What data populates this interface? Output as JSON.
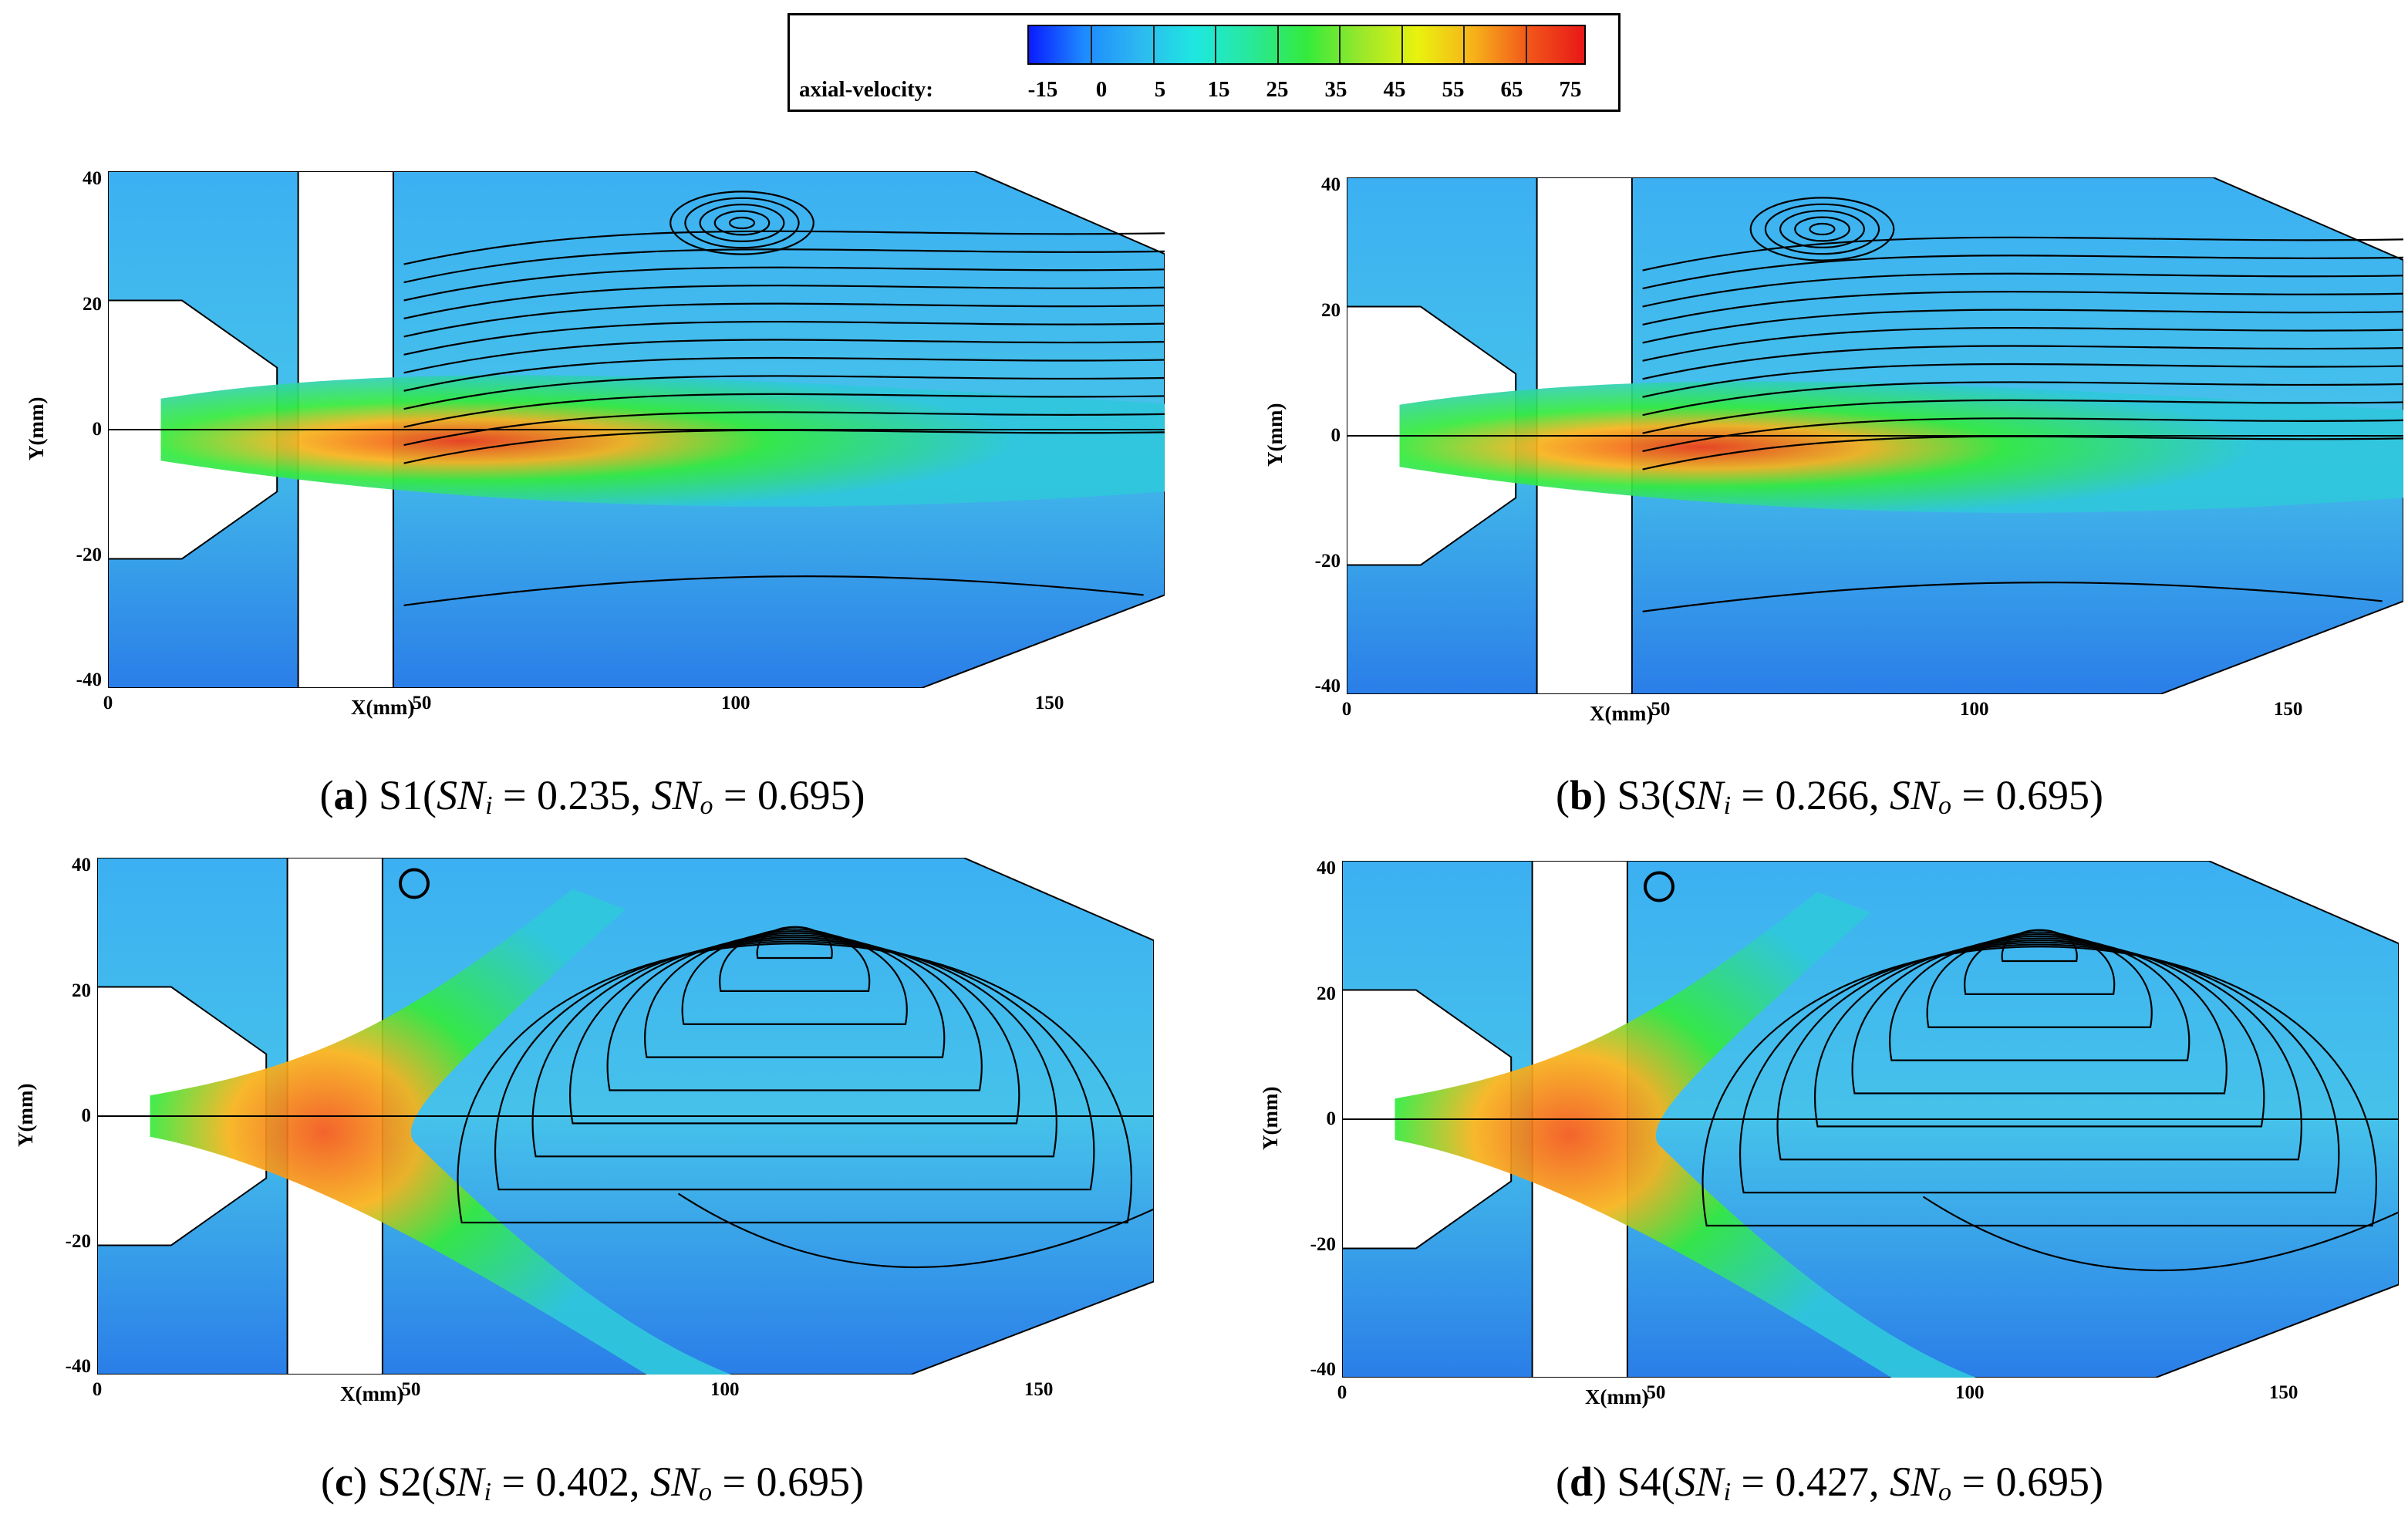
{
  "colorbar": {
    "title": "axial-velocity:",
    "ticks": [
      "-15",
      "0",
      "5",
      "15",
      "25",
      "35",
      "45",
      "55",
      "65",
      "75"
    ]
  },
  "axes": {
    "xlabel": "X(mm)",
    "ylabel": "Y(mm)",
    "xticks": [
      "0",
      "50",
      "100",
      "150"
    ],
    "yticks": [
      "40",
      "20",
      "0",
      "-20",
      "-40"
    ]
  },
  "panels": [
    {
      "id": "a",
      "letter": "a",
      "case": "S1",
      "sni_label": "SN",
      "sni_sub": "i",
      "sni": "0.235",
      "sno_label": "SN",
      "sno_sub": "o",
      "sno": "0.695"
    },
    {
      "id": "b",
      "letter": "b",
      "case": "S3",
      "sni_label": "SN",
      "sni_sub": "i",
      "sni": "0.266",
      "sno_label": "SN",
      "sno_sub": "o",
      "sno": "0.695"
    },
    {
      "id": "c",
      "letter": "c",
      "case": "S2",
      "sni_label": "SN",
      "sni_sub": "i",
      "sni": "0.402",
      "sno_label": "SN",
      "sno_sub": "o",
      "sno": "0.695"
    },
    {
      "id": "d",
      "letter": "d",
      "case": "S4",
      "sni_label": "SN",
      "sni_sub": "i",
      "sni": "0.427",
      "sno_label": "SN",
      "sno_sub": "o",
      "sno": "0.695"
    }
  ],
  "colors": {
    "low": "#0a1cff",
    "background_field": "#3aa6f0",
    "mid": "#34ea3c",
    "high": "#e81818"
  }
}
